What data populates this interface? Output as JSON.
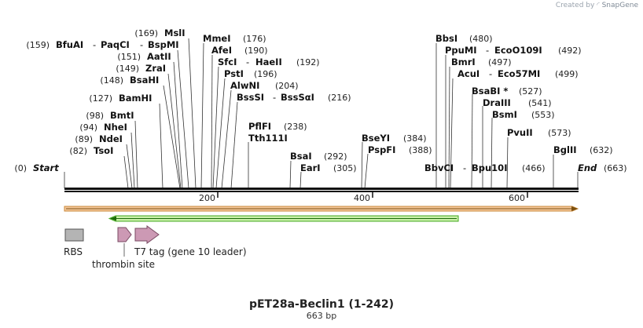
{
  "credit": {
    "prefix": "Created by",
    "brand": "SnapGene"
  },
  "title": "pET28a-Beclin1 (1-242)",
  "length_label": "663 bp",
  "ruler": {
    "ticks": [
      "200",
      "400",
      "600"
    ]
  },
  "ends": {
    "start": {
      "pos": "(0)",
      "label": "Start"
    },
    "end": {
      "pos": "(663)",
      "label": "End"
    }
  },
  "sites": [
    {
      "id": "tsoi",
      "pos": "(82)",
      "names": [
        "TsoI"
      ]
    },
    {
      "id": "ndei",
      "pos": "(89)",
      "names": [
        "NdeI"
      ]
    },
    {
      "id": "nhei",
      "pos": "(94)",
      "names": [
        "NheI"
      ]
    },
    {
      "id": "bmti",
      "pos": "(98)",
      "names": [
        "BmtI"
      ]
    },
    {
      "id": "bamhi",
      "pos": "(127)",
      "names": [
        "BamHI"
      ]
    },
    {
      "id": "bsahi",
      "pos": "(148)",
      "names": [
        "BsaHI"
      ]
    },
    {
      "id": "zrai",
      "pos": "(149)",
      "names": [
        "ZraI"
      ]
    },
    {
      "id": "aatii",
      "pos": "(151)",
      "names": [
        "AatII"
      ]
    },
    {
      "id": "bfuai",
      "pos": "(159)",
      "names": [
        "BfuAI",
        "PaqCI",
        "BspMI"
      ]
    },
    {
      "id": "msli",
      "pos": "(169)",
      "names": [
        "MslI"
      ]
    },
    {
      "id": "mmei",
      "pos": "(176)",
      "names": [
        "MmeI"
      ]
    },
    {
      "id": "afei",
      "pos": "(190)",
      "names": [
        "AfeI"
      ]
    },
    {
      "id": "sfci",
      "pos": "(192)",
      "names": [
        "SfcI",
        "HaeII"
      ]
    },
    {
      "id": "psti",
      "pos": "(196)",
      "names": [
        "PstI"
      ]
    },
    {
      "id": "alwni",
      "pos": "(204)",
      "names": [
        "AlwNI"
      ]
    },
    {
      "id": "bsssi",
      "pos": "(216)",
      "names": [
        "BssSI",
        "BssSαI"
      ]
    },
    {
      "id": "pflfi",
      "pos": "(238)",
      "names": [
        "PflFI"
      ]
    },
    {
      "id": "tth111i",
      "pos": "",
      "names": [
        "Tth111I"
      ]
    },
    {
      "id": "bsai",
      "pos": "(292)",
      "names": [
        "BsaI"
      ]
    },
    {
      "id": "eari",
      "pos": "(305)",
      "names": [
        "EarI"
      ]
    },
    {
      "id": "bseyi",
      "pos": "(384)",
      "names": [
        "BseYI"
      ]
    },
    {
      "id": "pspfi",
      "pos": "(388)",
      "names": [
        "PspFI"
      ]
    },
    {
      "id": "bbvci",
      "pos": "(466)",
      "names": [
        "BbvCI",
        "Bpu10I"
      ]
    },
    {
      "id": "bbsi",
      "pos": "(480)",
      "names": [
        "BbsI"
      ]
    },
    {
      "id": "ppumi",
      "pos": "(492)",
      "names": [
        "PpuMI",
        "EcoO109I"
      ]
    },
    {
      "id": "bmri",
      "pos": "(497)",
      "names": [
        "BmrI"
      ]
    },
    {
      "id": "acui",
      "pos": "(499)",
      "names": [
        "AcuI",
        "Eco57MI"
      ]
    },
    {
      "id": "bsabi",
      "pos": "(527)",
      "names": [
        "BsaBI *"
      ]
    },
    {
      "id": "draiii",
      "pos": "(541)",
      "names": [
        "DraIII"
      ]
    },
    {
      "id": "bsmi",
      "pos": "(553)",
      "names": [
        "BsmI"
      ]
    },
    {
      "id": "pvuii",
      "pos": "(573)",
      "names": [
        "PvuII"
      ]
    },
    {
      "id": "bglii",
      "pos": "(632)",
      "names": [
        "BglII"
      ]
    }
  ],
  "features": [
    {
      "id": "rbs",
      "label": "RBS"
    },
    {
      "id": "thrombin",
      "label": "thrombin site"
    },
    {
      "id": "t7tag",
      "label": "T7 tag (gene 10 leader)"
    }
  ],
  "colors": {
    "orf_fill": "#f5c79a",
    "orf_stroke": "#c98a3a",
    "cds_fill": "#c9f0a8",
    "cds_stroke": "#44aa22",
    "rbs_fill": "#b4b4b4",
    "tag_fill": "#cc99b4",
    "tag_stroke": "#7a4a63"
  }
}
